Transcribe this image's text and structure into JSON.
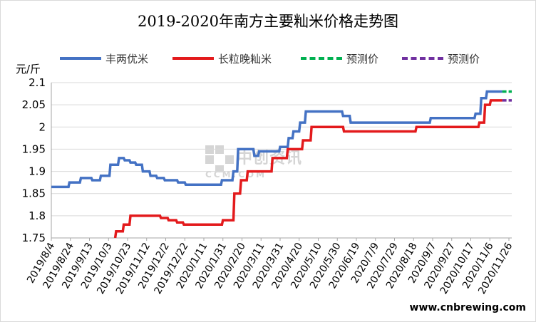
{
  "chart_data": {
    "type": "line",
    "title": "2019-2020年南方主要籼米价格走势图",
    "y_unit": "元/斤",
    "ylim": [
      1.75,
      2.1
    ],
    "yticks": [
      "1.75",
      "1.8",
      "1.85",
      "1.9",
      "1.95",
      "2",
      "2.05",
      "2.1"
    ],
    "x_start": "2019/8/4",
    "x_end": "2020/11/29",
    "xticks": [
      "2019/8/4",
      "2019/8/24",
      "2019/9/13",
      "2019/10/3",
      "2019/10/23",
      "2019/11/12",
      "2019/12/2",
      "2019/12/22",
      "2020/1/11",
      "2020/1/31",
      "2020/2/20",
      "2020/3/11",
      "2020/3/31",
      "2020/4/20",
      "2020/5/10",
      "2020/5/30",
      "2020/6/19",
      "2020/7/9",
      "2020/7/29",
      "2020/8/18",
      "2020/9/7",
      "2020/9/27",
      "2020/10/17",
      "2020/11/6",
      "2020/11/26"
    ],
    "grid": "horizontal",
    "legend_position": "top",
    "series": [
      {
        "name": "丰两优米",
        "color": "#4472c4",
        "dash": false,
        "points": [
          [
            "2019/8/4",
            1.865
          ],
          [
            "2019/8/22",
            1.865
          ],
          [
            "2019/8/23",
            1.875
          ],
          [
            "2019/9/3",
            1.875
          ],
          [
            "2019/9/4",
            1.885
          ],
          [
            "2019/9/15",
            1.885
          ],
          [
            "2019/9/16",
            1.88
          ],
          [
            "2019/9/24",
            1.88
          ],
          [
            "2019/9/25",
            1.89
          ],
          [
            "2019/10/4",
            1.89
          ],
          [
            "2019/10/5",
            1.915
          ],
          [
            "2019/10/13",
            1.915
          ],
          [
            "2019/10/14",
            1.93
          ],
          [
            "2019/10/19",
            1.93
          ],
          [
            "2019/10/20",
            1.925
          ],
          [
            "2019/10/25",
            1.925
          ],
          [
            "2019/10/26",
            1.92
          ],
          [
            "2019/10/31",
            1.92
          ],
          [
            "2019/11/1",
            1.915
          ],
          [
            "2019/11/7",
            1.915
          ],
          [
            "2019/11/8",
            1.9
          ],
          [
            "2019/11/15",
            1.9
          ],
          [
            "2019/11/16",
            1.89
          ],
          [
            "2019/11/22",
            1.89
          ],
          [
            "2019/11/23",
            1.885
          ],
          [
            "2019/11/30",
            1.885
          ],
          [
            "2019/12/1",
            1.88
          ],
          [
            "2019/12/14",
            1.88
          ],
          [
            "2019/12/15",
            1.875
          ],
          [
            "2019/12/22",
            1.875
          ],
          [
            "2019/12/23",
            1.87
          ],
          [
            "2020/1/29",
            1.87
          ],
          [
            "2020/1/30",
            1.88
          ],
          [
            "2020/2/10",
            1.88
          ],
          [
            "2020/2/11",
            1.9
          ],
          [
            "2020/2/15",
            1.9
          ],
          [
            "2020/2/16",
            1.95
          ],
          [
            "2020/3/3",
            1.95
          ],
          [
            "2020/3/4",
            1.935
          ],
          [
            "2020/3/8",
            1.935
          ],
          [
            "2020/3/9",
            1.945
          ],
          [
            "2020/3/30",
            1.945
          ],
          [
            "2020/3/31",
            1.955
          ],
          [
            "2020/4/8",
            1.955
          ],
          [
            "2020/4/9",
            1.975
          ],
          [
            "2020/4/13",
            1.975
          ],
          [
            "2020/4/14",
            1.99
          ],
          [
            "2020/4/20",
            1.99
          ],
          [
            "2020/4/21",
            2.01
          ],
          [
            "2020/4/26",
            2.01
          ],
          [
            "2020/4/27",
            2.035
          ],
          [
            "2020/6/4",
            2.035
          ],
          [
            "2020/6/5",
            2.025
          ],
          [
            "2020/6/12",
            2.025
          ],
          [
            "2020/6/13",
            2.01
          ],
          [
            "2020/9/4",
            2.01
          ],
          [
            "2020/9/5",
            2.02
          ],
          [
            "2020/10/21",
            2.02
          ],
          [
            "2020/10/22",
            2.03
          ],
          [
            "2020/10/27",
            2.03
          ],
          [
            "2020/10/28",
            2.065
          ],
          [
            "2020/11/2",
            2.065
          ],
          [
            "2020/11/3",
            2.08
          ],
          [
            "2020/11/19",
            2.08
          ]
        ]
      },
      {
        "name": "长粒晚籼米",
        "color": "#e31a1c",
        "dash": false,
        "points": [
          [
            "2019/10/10",
            1.75
          ],
          [
            "2019/10/11",
            1.765
          ],
          [
            "2019/10/18",
            1.765
          ],
          [
            "2019/10/19",
            1.78
          ],
          [
            "2019/10/25",
            1.78
          ],
          [
            "2019/10/26",
            1.8
          ],
          [
            "2019/11/26",
            1.8
          ],
          [
            "2019/11/27",
            1.795
          ],
          [
            "2019/12/4",
            1.795
          ],
          [
            "2019/12/5",
            1.79
          ],
          [
            "2019/12/13",
            1.79
          ],
          [
            "2019/12/14",
            1.785
          ],
          [
            "2019/12/20",
            1.785
          ],
          [
            "2019/12/21",
            1.78
          ],
          [
            "2020/1/30",
            1.78
          ],
          [
            "2020/1/31",
            1.79
          ],
          [
            "2020/2/11",
            1.79
          ],
          [
            "2020/2/12",
            1.85
          ],
          [
            "2020/2/18",
            1.85
          ],
          [
            "2020/2/19",
            1.88
          ],
          [
            "2020/2/25",
            1.88
          ],
          [
            "2020/2/26",
            1.9
          ],
          [
            "2020/3/22",
            1.9
          ],
          [
            "2020/3/23",
            1.93
          ],
          [
            "2020/4/7",
            1.93
          ],
          [
            "2020/4/8",
            1.95
          ],
          [
            "2020/4/23",
            1.95
          ],
          [
            "2020/4/24",
            1.97
          ],
          [
            "2020/5/2",
            1.97
          ],
          [
            "2020/5/3",
            2.0
          ],
          [
            "2020/6/5",
            2.0
          ],
          [
            "2020/6/6",
            1.99
          ],
          [
            "2020/8/20",
            1.99
          ],
          [
            "2020/8/21",
            2.0
          ],
          [
            "2020/10/25",
            2.0
          ],
          [
            "2020/10/26",
            2.01
          ],
          [
            "2020/10/31",
            2.01
          ],
          [
            "2020/11/1",
            2.05
          ],
          [
            "2020/11/6",
            2.05
          ],
          [
            "2020/11/7",
            2.06
          ],
          [
            "2020/11/19",
            2.06
          ]
        ]
      },
      {
        "name": "预测价",
        "color": "#00b050",
        "dash": true,
        "points": [
          [
            "2020/11/19",
            2.08
          ],
          [
            "2020/11/29",
            2.08
          ]
        ]
      },
      {
        "name": "预测价",
        "color": "#7030a0",
        "dash": true,
        "points": [
          [
            "2020/11/19",
            2.06
          ],
          [
            "2020/11/29",
            2.06
          ]
        ]
      }
    ]
  },
  "footer": {
    "source": "www.cnbrewing.com"
  },
  "watermark": {
    "text": "中创资讯",
    "sub": "CCM.COM"
  }
}
